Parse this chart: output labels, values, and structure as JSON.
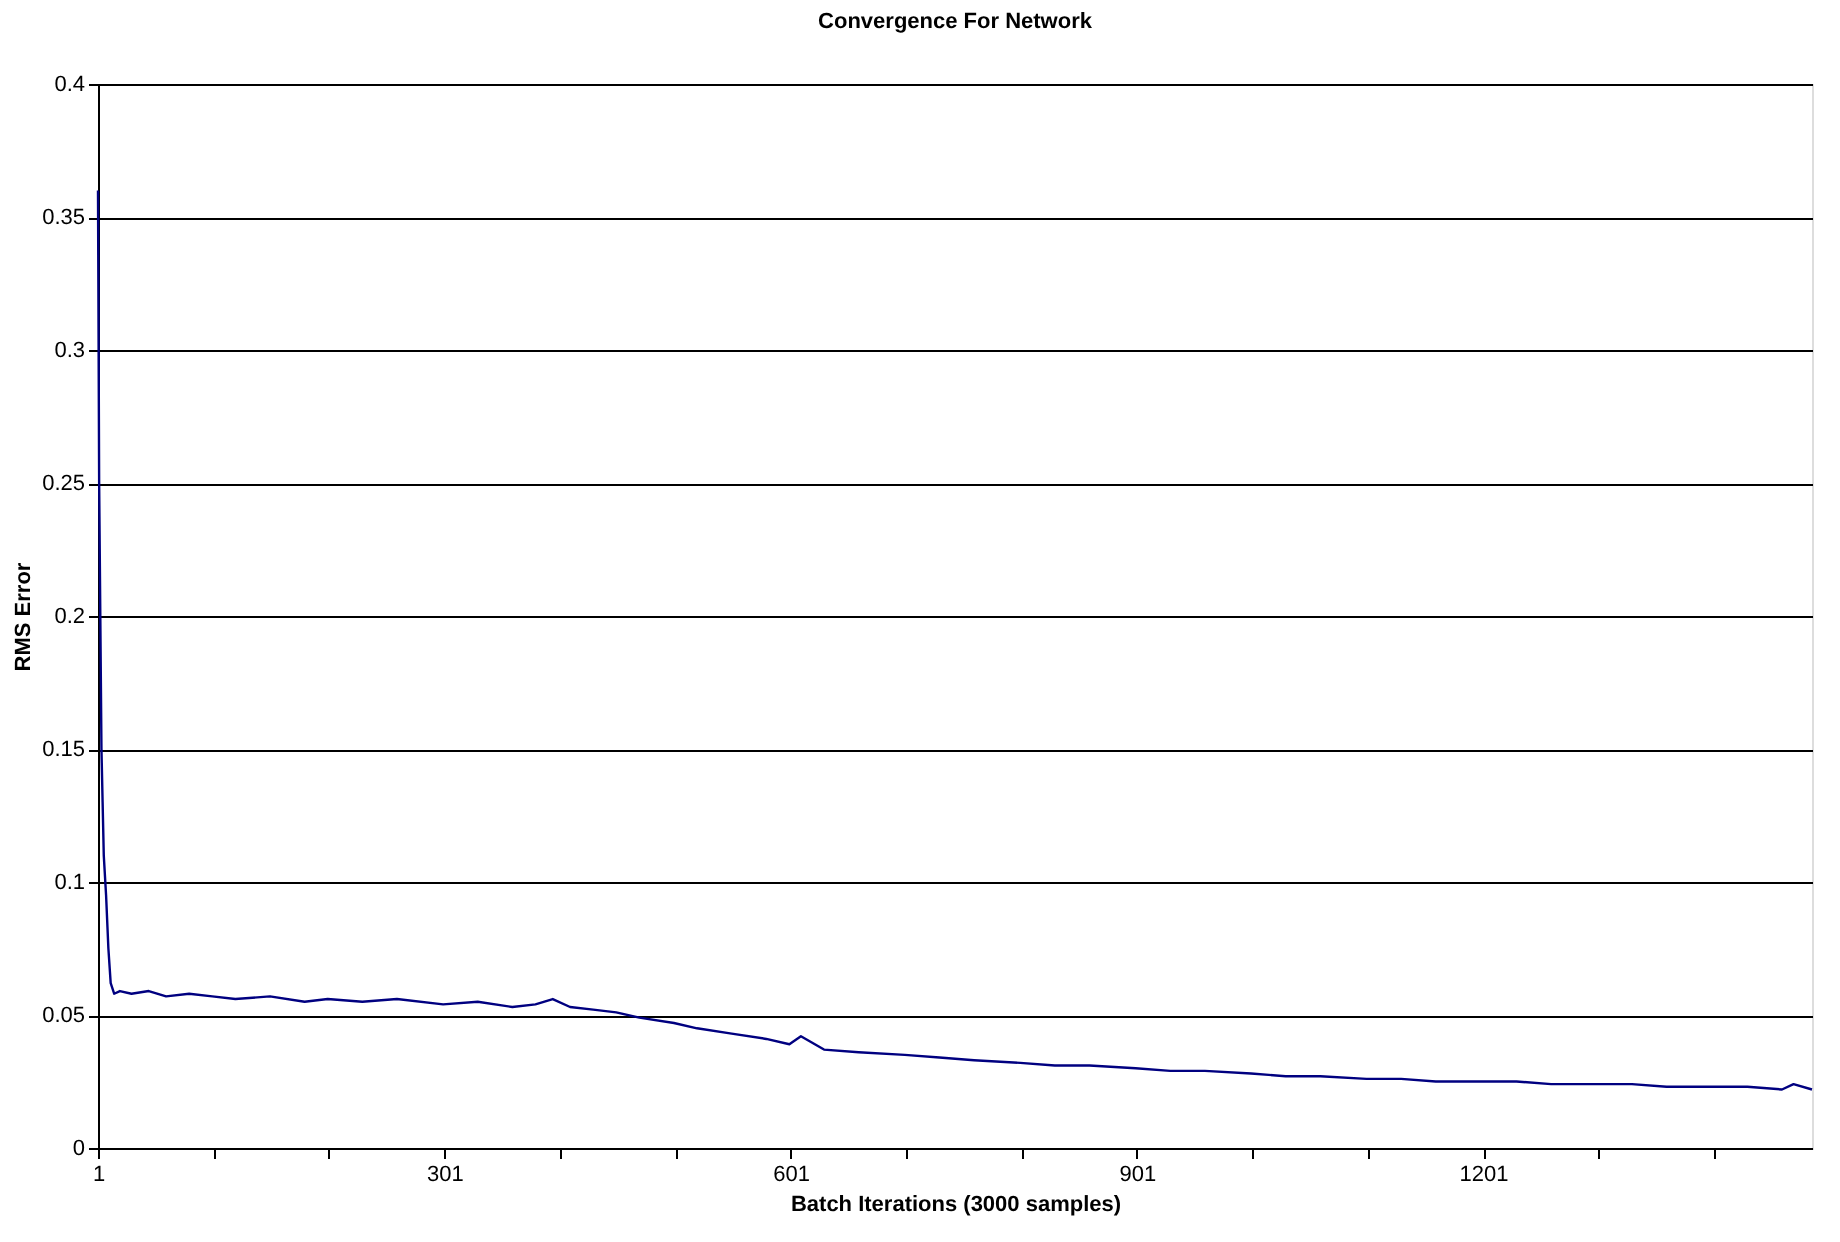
{
  "chart_data": {
    "type": "line",
    "title": "Convergence For Network",
    "xlabel": "Batch Iterations (3000 samples)",
    "ylabel": "RMS Error",
    "x": [
      1,
      2,
      3,
      4,
      5,
      6,
      8,
      10,
      12,
      15,
      20,
      30,
      45,
      60,
      80,
      100,
      120,
      150,
      180,
      200,
      230,
      260,
      300,
      330,
      360,
      380,
      395,
      410,
      430,
      450,
      470,
      500,
      520,
      550,
      580,
      600,
      610,
      630,
      660,
      700,
      730,
      760,
      800,
      830,
      860,
      900,
      930,
      960,
      1000,
      1030,
      1060,
      1100,
      1130,
      1160,
      1200,
      1230,
      1260,
      1300,
      1330,
      1360,
      1400,
      1430,
      1460,
      1470,
      1486
    ],
    "series": [
      {
        "color": "#000080",
        "values": [
          0.36,
          0.25,
          0.2,
          0.15,
          0.13,
          0.11,
          0.095,
          0.075,
          0.062,
          0.058,
          0.059,
          0.058,
          0.059,
          0.057,
          0.058,
          0.057,
          0.056,
          0.057,
          0.055,
          0.056,
          0.055,
          0.056,
          0.054,
          0.055,
          0.053,
          0.054,
          0.056,
          0.053,
          0.052,
          0.051,
          0.049,
          0.047,
          0.045,
          0.043,
          0.041,
          0.039,
          0.042,
          0.037,
          0.036,
          0.035,
          0.034,
          0.033,
          0.032,
          0.031,
          0.031,
          0.03,
          0.029,
          0.029,
          0.028,
          0.027,
          0.027,
          0.026,
          0.026,
          0.025,
          0.025,
          0.025,
          0.024,
          0.024,
          0.024,
          0.023,
          0.023,
          0.023,
          0.022,
          0.024,
          0.022
        ]
      }
    ],
    "xlim": [
      1,
      1486
    ],
    "xticks": [
      1,
      {
        "value": 101,
        "label": null
      },
      {
        "value": 201,
        "label": null
      },
      301,
      {
        "value": 401,
        "label": null
      },
      {
        "value": 501,
        "label": null
      },
      601,
      {
        "value": 701,
        "label": null
      },
      {
        "value": 801,
        "label": null
      },
      901,
      {
        "value": 1001,
        "label": null
      },
      {
        "value": 1101,
        "label": null
      },
      1201,
      {
        "value": 1301,
        "label": null
      },
      {
        "value": 1401,
        "label": null
      }
    ],
    "ylim": [
      0,
      0.4
    ],
    "yticks": [
      0,
      0.05,
      0.1,
      0.15,
      0.2,
      0.25,
      0.3,
      0.35,
      0.4
    ],
    "grid": "y",
    "marker": "none",
    "line_style": "solid"
  }
}
